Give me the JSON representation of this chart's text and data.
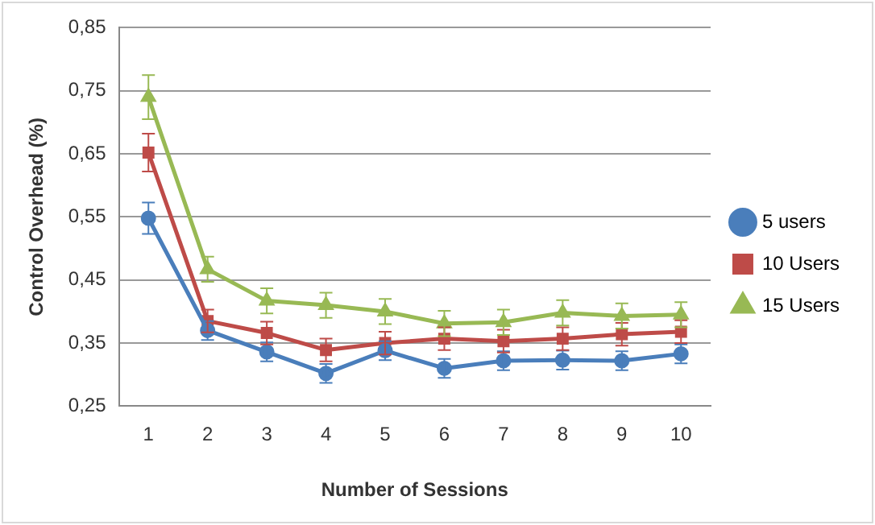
{
  "chart_data": {
    "type": "line",
    "xlabel": "Number of Sessions",
    "ylabel": "Control Overhead (%)",
    "categories": [
      "1",
      "2",
      "3",
      "4",
      "5",
      "6",
      "7",
      "8",
      "9",
      "10"
    ],
    "series": [
      {
        "name": "5 users",
        "color": "#4a7ebb",
        "marker": "circle",
        "values": [
          0.548,
          0.37,
          0.336,
          0.302,
          0.338,
          0.31,
          0.322,
          0.323,
          0.322,
          0.333
        ],
        "errors": [
          0.025,
          0.015,
          0.015,
          0.015,
          0.015,
          0.015,
          0.015,
          0.015,
          0.015,
          0.015
        ]
      },
      {
        "name": "10 Users",
        "color": "#be4b48",
        "marker": "square",
        "values": [
          0.652,
          0.385,
          0.366,
          0.339,
          0.35,
          0.357,
          0.353,
          0.357,
          0.364,
          0.368
        ],
        "errors": [
          0.03,
          0.018,
          0.018,
          0.018,
          0.018,
          0.018,
          0.018,
          0.018,
          0.018,
          0.018
        ]
      },
      {
        "name": "15 Users",
        "color": "#98b954",
        "marker": "triangle",
        "values": [
          0.74,
          0.467,
          0.417,
          0.41,
          0.4,
          0.381,
          0.383,
          0.398,
          0.393,
          0.395
        ],
        "errors": [
          0.035,
          0.02,
          0.02,
          0.02,
          0.02,
          0.02,
          0.02,
          0.02,
          0.02,
          0.02
        ]
      }
    ],
    "ylim": [
      0.25,
      0.85
    ],
    "yticks": [
      {
        "value": 0.25,
        "label": "0,25"
      },
      {
        "value": 0.35,
        "label": "0,35"
      },
      {
        "value": 0.45,
        "label": "0,45"
      },
      {
        "value": 0.55,
        "label": "0,55"
      },
      {
        "value": 0.65,
        "label": "0,65"
      },
      {
        "value": 0.75,
        "label": "0,75"
      },
      {
        "value": 0.85,
        "label": "0,85"
      }
    ],
    "grid": "y",
    "legend": "right",
    "line_style": "solid"
  }
}
